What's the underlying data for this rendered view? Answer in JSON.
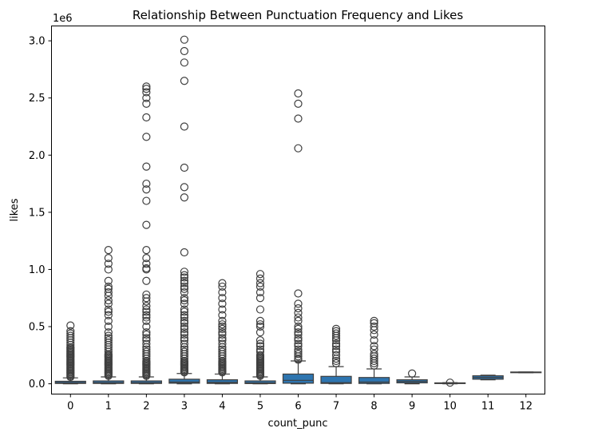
{
  "chart_data": {
    "type": "box",
    "title": "Relationship Between Punctuation Frequency and Likes",
    "xlabel": "count_punc",
    "ylabel": "likes",
    "y_offset_label": "1e6",
    "categories": [
      "0",
      "1",
      "2",
      "3",
      "4",
      "5",
      "6",
      "7",
      "8",
      "9",
      "10",
      "11",
      "12"
    ],
    "yticks": [
      0.0,
      0.5,
      1.0,
      1.5,
      2.0,
      2.5,
      3.0
    ],
    "ytick_labels": [
      "0.0",
      "0.5",
      "1.0",
      "1.5",
      "2.0",
      "2.5",
      "3.0"
    ],
    "ylim": [
      -0.09,
      3.13
    ],
    "grid": false,
    "box_color": "#2e75b0",
    "boxes": [
      {
        "category": "0",
        "q1": 0.003,
        "median": 0.01,
        "q3": 0.022,
        "whisker_low": 0.0,
        "whisker_high": 0.052,
        "outliers": [
          0.06,
          0.07,
          0.08,
          0.09,
          0.1,
          0.11,
          0.12,
          0.13,
          0.14,
          0.15,
          0.16,
          0.17,
          0.18,
          0.19,
          0.2,
          0.21,
          0.22,
          0.23,
          0.24,
          0.25,
          0.26,
          0.27,
          0.28,
          0.29,
          0.3,
          0.31,
          0.32,
          0.34,
          0.36,
          0.38,
          0.4,
          0.42,
          0.44,
          0.46,
          0.51
        ]
      },
      {
        "category": "1",
        "q1": 0.003,
        "median": 0.01,
        "q3": 0.025,
        "whisker_low": 0.0,
        "whisker_high": 0.06,
        "outliers": [
          0.07,
          0.08,
          0.09,
          0.1,
          0.11,
          0.12,
          0.13,
          0.14,
          0.15,
          0.16,
          0.17,
          0.18,
          0.19,
          0.2,
          0.21,
          0.22,
          0.23,
          0.24,
          0.25,
          0.26,
          0.28,
          0.3,
          0.32,
          0.34,
          0.36,
          0.38,
          0.4,
          0.42,
          0.45,
          0.5,
          0.55,
          0.6,
          0.63,
          0.65,
          0.7,
          0.73,
          0.77,
          0.8,
          0.83,
          0.85,
          0.9,
          1.0,
          1.05,
          1.1,
          1.17
        ]
      },
      {
        "category": "2",
        "q1": 0.003,
        "median": 0.01,
        "q3": 0.025,
        "whisker_low": 0.0,
        "whisker_high": 0.06,
        "outliers": [
          0.07,
          0.08,
          0.09,
          0.1,
          0.11,
          0.12,
          0.13,
          0.14,
          0.15,
          0.16,
          0.17,
          0.18,
          0.19,
          0.2,
          0.22,
          0.24,
          0.26,
          0.28,
          0.3,
          0.32,
          0.35,
          0.38,
          0.4,
          0.43,
          0.45,
          0.5,
          0.55,
          0.58,
          0.6,
          0.63,
          0.65,
          0.68,
          0.72,
          0.75,
          0.78,
          0.9,
          1.0,
          1.01,
          1.05,
          1.1,
          1.17,
          1.39,
          1.6,
          1.7,
          1.75,
          1.9,
          2.16,
          2.33,
          2.45,
          2.5,
          2.55,
          2.58,
          2.6
        ]
      },
      {
        "category": "3",
        "q1": 0.005,
        "median": 0.015,
        "q3": 0.04,
        "whisker_low": 0.0,
        "whisker_high": 0.09,
        "outliers": [
          0.1,
          0.11,
          0.12,
          0.13,
          0.14,
          0.15,
          0.16,
          0.17,
          0.18,
          0.19,
          0.2,
          0.22,
          0.24,
          0.26,
          0.28,
          0.3,
          0.32,
          0.35,
          0.38,
          0.4,
          0.43,
          0.45,
          0.48,
          0.5,
          0.53,
          0.55,
          0.58,
          0.6,
          0.63,
          0.65,
          0.7,
          0.73,
          0.75,
          0.8,
          0.83,
          0.85,
          0.88,
          0.9,
          0.93,
          0.95,
          0.98,
          1.15,
          1.63,
          1.72,
          1.89,
          2.25,
          2.65,
          2.81,
          2.91,
          3.01
        ]
      },
      {
        "category": "4",
        "q1": 0.003,
        "median": 0.012,
        "q3": 0.035,
        "whisker_low": 0.0,
        "whisker_high": 0.085,
        "outliers": [
          0.1,
          0.11,
          0.12,
          0.13,
          0.14,
          0.15,
          0.16,
          0.17,
          0.18,
          0.19,
          0.2,
          0.22,
          0.24,
          0.26,
          0.28,
          0.3,
          0.32,
          0.35,
          0.38,
          0.4,
          0.43,
          0.45,
          0.48,
          0.5,
          0.52,
          0.55,
          0.6,
          0.65,
          0.7,
          0.75,
          0.8,
          0.85,
          0.88
        ]
      },
      {
        "category": "5",
        "q1": 0.002,
        "median": 0.008,
        "q3": 0.025,
        "whisker_low": 0.0,
        "whisker_high": 0.06,
        "outliers": [
          0.07,
          0.08,
          0.09,
          0.1,
          0.11,
          0.12,
          0.13,
          0.14,
          0.15,
          0.16,
          0.17,
          0.18,
          0.19,
          0.2,
          0.21,
          0.22,
          0.23,
          0.24,
          0.25,
          0.28,
          0.3,
          0.33,
          0.35,
          0.38,
          0.45,
          0.5,
          0.52,
          0.55,
          0.65,
          0.75,
          0.8,
          0.85,
          0.88,
          0.92,
          0.96
        ]
      },
      {
        "category": "6",
        "q1": 0.005,
        "median": 0.03,
        "q3": 0.085,
        "whisker_low": 0.0,
        "whisker_high": 0.2,
        "outliers": [
          0.21,
          0.22,
          0.24,
          0.26,
          0.28,
          0.3,
          0.33,
          0.35,
          0.38,
          0.4,
          0.43,
          0.45,
          0.48,
          0.5,
          0.55,
          0.58,
          0.62,
          0.66,
          0.7,
          0.79,
          2.06,
          2.32,
          2.45,
          2.54
        ]
      },
      {
        "category": "7",
        "q1": 0.003,
        "median": 0.01,
        "q3": 0.065,
        "whisker_low": 0.0,
        "whisker_high": 0.15,
        "outliers": [
          0.18,
          0.2,
          0.22,
          0.25,
          0.28,
          0.3,
          0.33,
          0.35,
          0.38,
          0.4,
          0.42,
          0.44,
          0.46,
          0.48
        ]
      },
      {
        "category": "8",
        "q1": 0.003,
        "median": 0.015,
        "q3": 0.055,
        "whisker_low": 0.0,
        "whisker_high": 0.13,
        "outliers": [
          0.16,
          0.18,
          0.2,
          0.22,
          0.24,
          0.26,
          0.3,
          0.33,
          0.38,
          0.43,
          0.47,
          0.5,
          0.53,
          0.55
        ]
      },
      {
        "category": "9",
        "q1": 0.008,
        "median": 0.02,
        "q3": 0.035,
        "whisker_low": 0.0,
        "whisker_high": 0.06,
        "outliers": [
          0.09
        ]
      },
      {
        "category": "10",
        "q1": 0.002,
        "median": 0.005,
        "q3": 0.008,
        "whisker_low": 0.0,
        "whisker_high": 0.01,
        "outliers": [
          0.01
        ]
      },
      {
        "category": "11",
        "q1": 0.04,
        "median": 0.055,
        "q3": 0.07,
        "whisker_low": 0.035,
        "whisker_high": 0.075,
        "outliers": []
      },
      {
        "category": "12",
        "q1": 0.097,
        "median": 0.1,
        "q3": 0.103,
        "whisker_low": 0.097,
        "whisker_high": 0.103,
        "outliers": []
      }
    ]
  }
}
